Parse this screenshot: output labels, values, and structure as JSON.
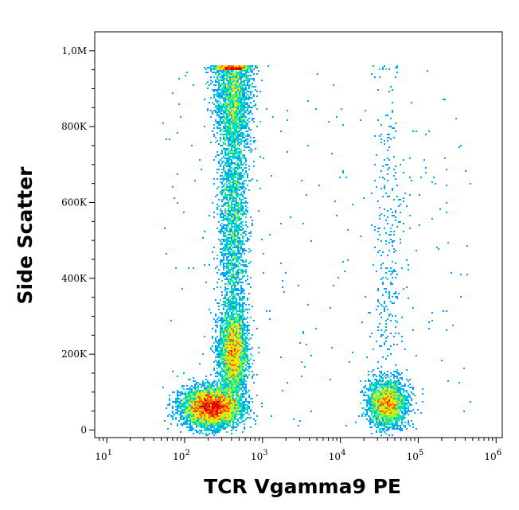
{
  "chart_data": {
    "type": "scatter",
    "style": "density pseudocolor dot plot",
    "title": "",
    "xlabel": "TCR Vgamma9 PE",
    "ylabel": "Side Scatter",
    "x_scale": "log",
    "y_scale": "linear",
    "xlim": [
      7,
      1200000
    ],
    "ylim": [
      -20000,
      1050000
    ],
    "x_ticks": [
      {
        "value": 10,
        "base": "10",
        "exp": "1"
      },
      {
        "value": 100,
        "base": "10",
        "exp": "2"
      },
      {
        "value": 1000,
        "base": "10",
        "exp": "3"
      },
      {
        "value": 10000,
        "base": "10",
        "exp": "4"
      },
      {
        "value": 100000,
        "base": "10",
        "exp": "5"
      },
      {
        "value": 1000000,
        "base": "10",
        "exp": "6"
      }
    ],
    "y_ticks": [
      {
        "value": 0,
        "label": "0"
      },
      {
        "value": 200000,
        "label": "200K"
      },
      {
        "value": 400000,
        "label": "400K"
      },
      {
        "value": 600000,
        "label": "600K"
      },
      {
        "value": 800000,
        "label": "800K"
      },
      {
        "value": 1000000,
        "label": "1,0M"
      }
    ],
    "grid": false,
    "color_scale": [
      "#0000e0",
      "#00a0ff",
      "#00e0c0",
      "#80ff40",
      "#ffe000",
      "#ff6000",
      "#e00000"
    ],
    "populations": [
      {
        "x_center": 220,
        "y_center": 60000,
        "x_spread_decades": 0.18,
        "y_spread": 25000,
        "relative_density": 1.0
      },
      {
        "x_center": 420,
        "y_center": 200000,
        "x_spread_decades": 0.09,
        "y_spread": 55000,
        "relative_density": 0.55
      },
      {
        "x_center": 420,
        "y_center": 560000,
        "x_spread_decades": 0.09,
        "y_spread": 200000,
        "relative_density": 0.5
      },
      {
        "x_center": 420,
        "y_center": 900000,
        "x_spread_decades": 0.12,
        "y_spread": 80000,
        "relative_density": 0.4
      },
      {
        "x_center": 40000,
        "y_center": 70000,
        "x_spread_decades": 0.12,
        "y_spread": 30000,
        "relative_density": 0.45
      },
      {
        "x_center": 40000,
        "y_center": 450000,
        "x_spread_decades": 0.1,
        "y_spread": 280000,
        "relative_density": 0.06
      }
    ],
    "ceiling_value": 960000
  }
}
